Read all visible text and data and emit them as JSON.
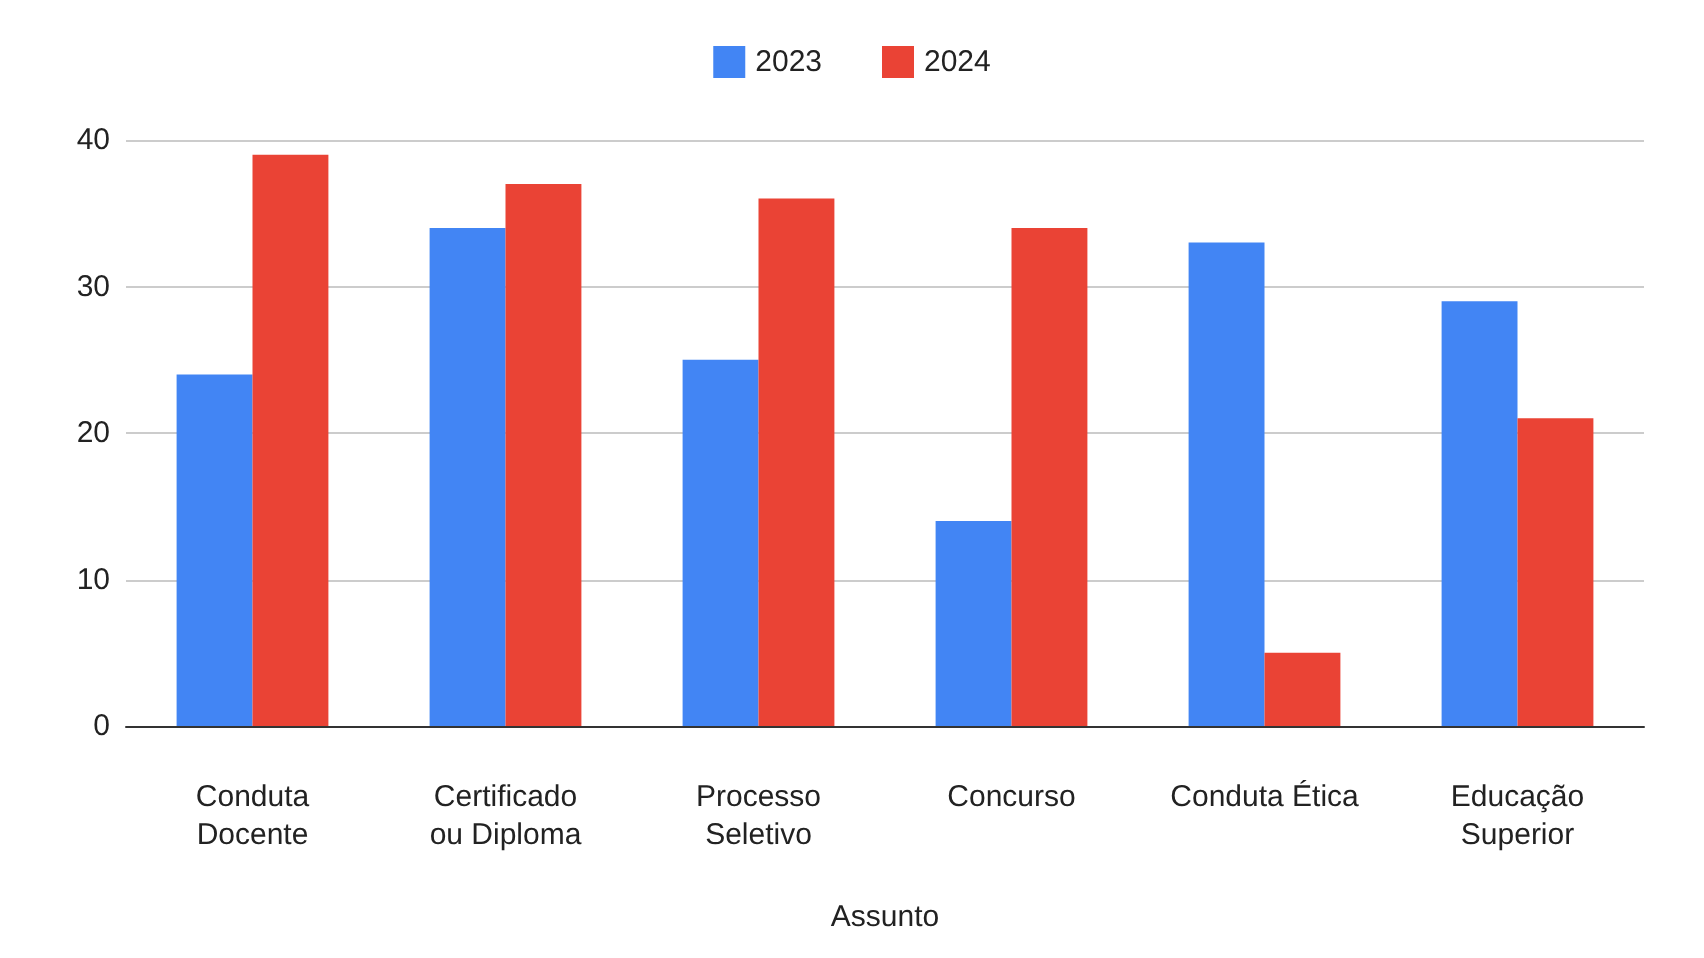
{
  "chart_data": {
    "type": "bar",
    "xlabel": "Assunto",
    "categories": [
      "Conduta Docente",
      "Certificado ou Diploma",
      "Processo Seletivo",
      "Concurso",
      "Conduta Ética",
      "Educação Superior"
    ],
    "series": [
      {
        "name": "2023",
        "color": "#4285f4",
        "values": [
          24,
          34,
          25,
          14,
          33,
          29
        ]
      },
      {
        "name": "2024",
        "color": "#ea4335",
        "values": [
          39,
          37,
          36,
          34,
          5,
          21
        ]
      }
    ],
    "ylim": [
      0,
      40
    ],
    "yticks": [
      0,
      10,
      20,
      30,
      40
    ],
    "grid": "y",
    "legend": "top"
  }
}
